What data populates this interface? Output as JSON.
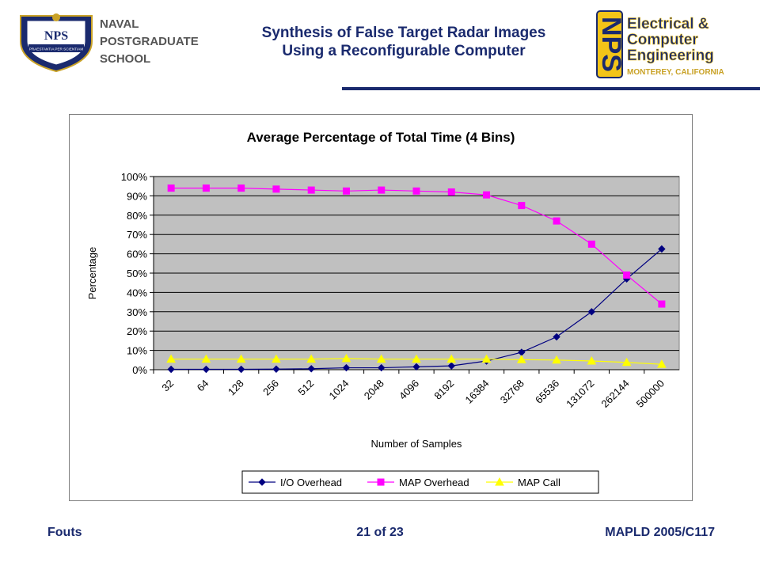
{
  "slide": {
    "title_line1": "Synthesis of False Target Radar Images",
    "title_line2": "Using a Reconfigurable Computer",
    "logo_left": {
      "line1": "NAVAL",
      "line2": "POSTGRADUATE",
      "line3": "SCHOOL",
      "shield_text": "NPS",
      "banner_text": "PRAESTANTIA PER SCIENTIAM"
    },
    "logo_right": {
      "monogram": "NPS",
      "word1": "Electrical &",
      "word2": "Computer",
      "word3": "Engineering",
      "location": "MONTEREY, CALIFORNIA"
    },
    "footer": {
      "author": "Fouts",
      "page": "21 of 23",
      "conference": "MAPLD 2005/C117"
    },
    "colors": {
      "navy": "#1a2a6e",
      "gold": "#f2c418",
      "plot_bg": "#c0c0c0"
    }
  },
  "chart_data": {
    "type": "line",
    "title": "Average Percentage of Total Time (4 Bins)",
    "xlabel": "Number of Samples",
    "ylabel": "Percentage",
    "categories": [
      "32",
      "64",
      "128",
      "256",
      "512",
      "1024",
      "2048",
      "4096",
      "8192",
      "16384",
      "32768",
      "65536",
      "131072",
      "262144",
      "500000"
    ],
    "ylim": [
      0,
      100
    ],
    "yticks": [
      "0%",
      "10%",
      "20%",
      "30%",
      "40%",
      "50%",
      "60%",
      "70%",
      "80%",
      "90%",
      "100%"
    ],
    "grid": true,
    "legend_position": "bottom",
    "series": [
      {
        "name": "I/O Overhead",
        "color": "#000080",
        "marker": "diamond",
        "values": [
          0.2,
          0.2,
          0.2,
          0.3,
          0.5,
          1,
          1,
          1.5,
          2,
          4.5,
          9,
          17,
          30,
          47,
          62.5
        ]
      },
      {
        "name": "MAP Overhead",
        "color": "#ff00ff",
        "marker": "square",
        "values": [
          94,
          94,
          94,
          93.5,
          93,
          92.5,
          93,
          92.5,
          92,
          90.5,
          85,
          77,
          65,
          49,
          34
        ]
      },
      {
        "name": "MAP Call",
        "color": "#ffff00",
        "marker": "triangle",
        "values": [
          5.5,
          5.5,
          5.5,
          5.5,
          5.5,
          5.8,
          5.5,
          5.5,
          5.5,
          5.5,
          5.2,
          5,
          4.5,
          3.8,
          2.8
        ]
      }
    ]
  }
}
